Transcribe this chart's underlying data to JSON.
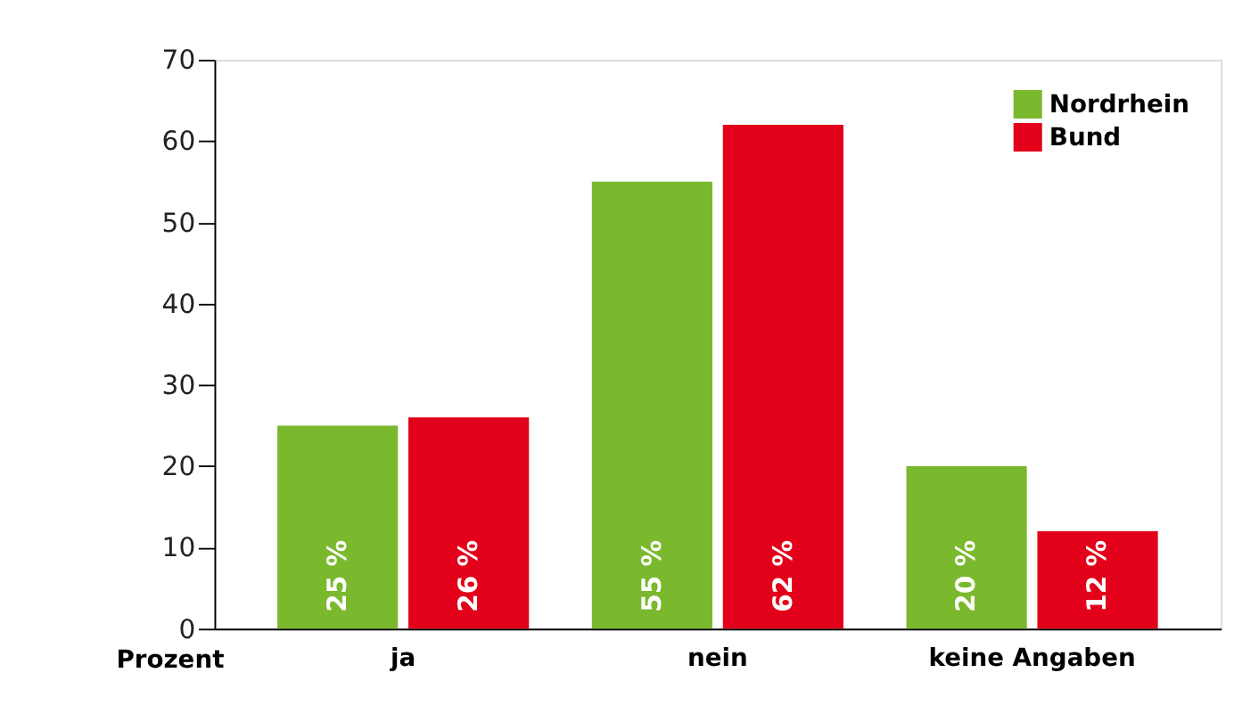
{
  "chart_data": {
    "type": "bar",
    "ylabel": "Prozent",
    "categories": [
      "ja",
      "nein",
      "keine Angaben"
    ],
    "series": [
      {
        "name": "Nordrhein",
        "color": "#7ab92d",
        "values": [
          25,
          55,
          20
        ],
        "value_labels": [
          "25 %",
          "55 %",
          "20 %"
        ]
      },
      {
        "name": "Bund",
        "color": "#e2001a",
        "values": [
          26,
          62,
          12
        ],
        "value_labels": [
          "26 %",
          "62 %",
          "12 %"
        ]
      }
    ],
    "ylim": [
      0,
      70
    ],
    "yticks": [
      0,
      10,
      20,
      30,
      40,
      50,
      60,
      70
    ],
    "grid": false,
    "legend": "top right"
  }
}
